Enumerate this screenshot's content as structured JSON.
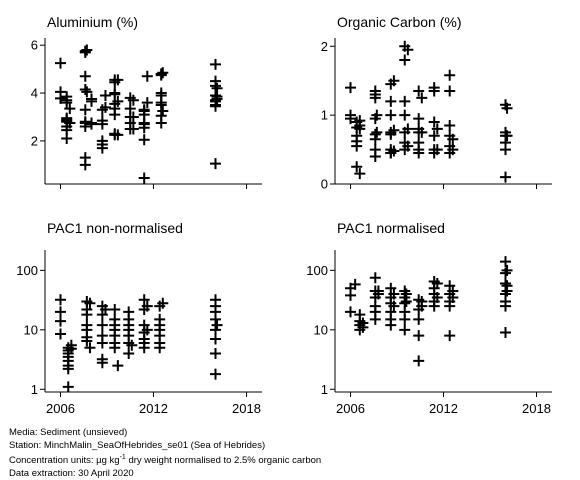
{
  "caption": {
    "media": "Media: Sediment (unsieved)",
    "station": "Station: MinchMalin_SeaOfHebrides_se01 (Sea of Hebrides)",
    "units_prefix": "Concentration units:  µg kg",
    "units_exp": "-1",
    "units_suffix": " dry weight normalised to 2.5% organic carbon",
    "extraction": "Data extraction: 30 April 2020"
  },
  "chart_data": [
    {
      "type": "scatter",
      "title": "Aluminium (%)",
      "marker": "plus",
      "xlim": [
        2005,
        2019
      ],
      "xticks": [
        2006,
        2012,
        2018
      ],
      "show_xtick_labels": false,
      "yscale": "linear",
      "ylim": [
        0.2,
        6.3
      ],
      "yticks": [
        {
          "value": 2,
          "label": "2"
        },
        {
          "value": 4,
          "label": "4"
        },
        {
          "value": 6,
          "label": "6"
        }
      ],
      "x": [
        2006,
        2006,
        2006,
        2006.4,
        2006.4,
        2006.4,
        2006.4,
        2006.4,
        2006.4,
        2006.4,
        2006.4,
        2006.4,
        2006.4,
        2006.6,
        2006.6,
        2006.6,
        2007.6,
        2007.6,
        2007.6,
        2007.6,
        2007.6,
        2007.6,
        2007.6,
        2007.6,
        2007.6,
        2007.6,
        2007.7,
        2007.7,
        2008,
        2008,
        2008,
        2008,
        2008.7,
        2008.7,
        2008.7,
        2008.7,
        2008.7,
        2008.7,
        2008.9,
        2008.9,
        2009.5,
        2009.5,
        2009.5,
        2009.5,
        2009.5,
        2009.5,
        2009.5,
        2009.5,
        2009.5,
        2009.7,
        2009.7,
        2009.7,
        2010.5,
        2010.5,
        2010.5,
        2010.5,
        2010.5,
        2010.7,
        2010.7,
        2010.7,
        2011.4,
        2011.4,
        2011.4,
        2011.4,
        2011.4,
        2011.4,
        2011.4,
        2011.4,
        2011.6,
        2011.6,
        2012.5,
        2012.5,
        2012.5,
        2012.5,
        2012.5,
        2012.5,
        2012.5,
        2012.5,
        2012.6,
        2012.6,
        2016,
        2016,
        2016,
        2016,
        2016,
        2016,
        2016,
        2016,
        2016,
        2016.1,
        2016.1,
        2016.1
      ],
      "y": [
        5.25,
        4.05,
        3.78,
        2.95,
        2.85,
        2.8,
        2.6,
        2.45,
        2.9,
        3.85,
        3.7,
        3.6,
        2.1,
        3.35,
        2.75,
        2.75,
        5.75,
        5.7,
        4.7,
        3.3,
        2.8,
        2.75,
        2.6,
        1.3,
        1.0,
        4.15,
        5.8,
        4.05,
        3.75,
        2.75,
        2.7,
        3.65,
        3.3,
        2.85,
        2.7,
        2.0,
        1.85,
        1.7,
        3.9,
        3.4,
        4.55,
        4.45,
        4.0,
        3.95,
        3.55,
        3.35,
        3.1,
        2.3,
        2.25,
        4.55,
        3.65,
        2.25,
        3.8,
        3.35,
        3.0,
        2.75,
        2.5,
        3.7,
        3.0,
        2.5,
        3.3,
        3.25,
        3.1,
        2.75,
        2.7,
        2.55,
        2.05,
        0.45,
        4.7,
        3.6,
        4.8,
        4.75,
        4.0,
        3.9,
        3.6,
        3.5,
        3.05,
        2.75,
        4.85,
        3.25,
        5.2,
        4.5,
        4.3,
        3.9,
        3.7,
        3.65,
        3.5,
        3.45,
        1.05,
        4.2,
        3.85,
        3.75
      ]
    },
    {
      "type": "scatter",
      "title": "Organic Carbon (%)",
      "marker": "plus",
      "xlim": [
        2005,
        2019
      ],
      "xticks": [
        2006,
        2012,
        2018
      ],
      "show_xtick_labels": false,
      "yscale": "linear",
      "ylim": [
        0,
        2.12
      ],
      "yticks": [
        {
          "value": 0,
          "label": "0"
        },
        {
          "value": 1,
          "label": "1"
        },
        {
          "value": 2,
          "label": "2"
        }
      ],
      "x": [
        2006,
        2006,
        2006,
        2006.4,
        2006.4,
        2006.4,
        2006.4,
        2006.4,
        2006.4,
        2006.6,
        2006.6,
        2006.6,
        2006.6,
        2007.6,
        2007.6,
        2007.6,
        2007.6,
        2007.6,
        2007.6,
        2007.6,
        2007.6,
        2007.7,
        2007.7,
        2008.6,
        2008.6,
        2008.6,
        2008.6,
        2008.6,
        2008.6,
        2008.6,
        2008.6,
        2008.8,
        2008.8,
        2008.8,
        2009.5,
        2009.5,
        2009.5,
        2009.5,
        2009.5,
        2009.5,
        2009.5,
        2009.7,
        2009.7,
        2009.7,
        2010.4,
        2010.4,
        2010.4,
        2010.4,
        2010.4,
        2010.4,
        2010.4,
        2010.6,
        2010.6,
        2011.4,
        2011.4,
        2011.4,
        2011.4,
        2011.4,
        2011.4,
        2011.6,
        2011.6,
        2012.4,
        2012.4,
        2012.4,
        2012.4,
        2012.4,
        2012.4,
        2012.6,
        2012.6,
        2016,
        2016,
        2016,
        2016,
        2016,
        2016,
        2016.1,
        2016.1
      ],
      "y": [
        1.4,
        1.0,
        0.95,
        0.9,
        0.82,
        0.7,
        0.62,
        0.55,
        0.25,
        0.85,
        0.8,
        0.15,
        0.92,
        1.3,
        1.25,
        0.95,
        0.72,
        0.65,
        0.5,
        0.4,
        1.35,
        1.0,
        0.75,
        1.45,
        1.0,
        0.75,
        0.72,
        0.5,
        0.45,
        0.45,
        1.2,
        1.5,
        0.78,
        0.48,
        2.0,
        1.8,
        1.2,
        1.0,
        0.75,
        0.6,
        0.5,
        1.95,
        0.8,
        0.55,
        1.35,
        0.95,
        0.8,
        0.75,
        0.6,
        0.5,
        0.45,
        1.25,
        0.75,
        1.4,
        0.9,
        0.7,
        0.5,
        0.45,
        1.35,
        0.8,
        0.5,
        1.58,
        0.85,
        0.7,
        0.55,
        0.45,
        1.35,
        0.65,
        0.5,
        1.15,
        0.75,
        0.7,
        0.6,
        0.5,
        0.1,
        1.1,
        0.7
      ]
    },
    {
      "type": "scatter",
      "title": "PAC1 non-normalised",
      "marker": "plus",
      "xlim": [
        2005,
        2019
      ],
      "xticks": [
        2006,
        2012,
        2018
      ],
      "show_xtick_labels": true,
      "yscale": "log",
      "ylim": [
        0.9,
        220
      ],
      "yticks": [
        {
          "value": 1,
          "label": "1"
        },
        {
          "value": 10,
          "label": "10"
        },
        {
          "value": 100,
          "label": "100"
        }
      ],
      "x": [
        2006,
        2006,
        2006,
        2006,
        2006.5,
        2006.5,
        2006.5,
        2006.5,
        2006.5,
        2006.5,
        2006.5,
        2006.5,
        2006.7,
        2006.7,
        2007.7,
        2007.7,
        2007.7,
        2007.7,
        2007.7,
        2007.7,
        2007.7,
        2007.9,
        2007.9,
        2008.7,
        2008.7,
        2008.7,
        2008.7,
        2008.7,
        2008.7,
        2008.7,
        2008.9,
        2009.5,
        2009.5,
        2009.5,
        2009.5,
        2009.5,
        2009.5,
        2009.5,
        2009.7,
        2010.4,
        2010.4,
        2010.4,
        2010.4,
        2010.4,
        2010.4,
        2010.4,
        2010.6,
        2011.4,
        2011.4,
        2011.4,
        2011.4,
        2011.4,
        2011.4,
        2011.4,
        2011.6,
        2011.6,
        2012.4,
        2012.4,
        2012.4,
        2012.4,
        2012.4,
        2012.4,
        2012.4,
        2012.6,
        2016,
        2016,
        2016,
        2016,
        2016,
        2016,
        2016,
        2016,
        2016.1
      ],
      "y": [
        32,
        20,
        14,
        8.5,
        5.0,
        4.5,
        4.0,
        3.5,
        3.0,
        2.5,
        2.2,
        1.1,
        5.5,
        4.8,
        30,
        22,
        18,
        12,
        10,
        7.5,
        6.5,
        28,
        5.0,
        25,
        18,
        12,
        8,
        6,
        3.2,
        2.8,
        22,
        22,
        15,
        12,
        10,
        8,
        6,
        5,
        2.5,
        20,
        15,
        12,
        10,
        8,
        6,
        4,
        5.5,
        32,
        22,
        12,
        9,
        7,
        6,
        5,
        10,
        25,
        25,
        15,
        12,
        10,
        8,
        6,
        5,
        28,
        32,
        25,
        20,
        15,
        10,
        7,
        4,
        1.8,
        12
      ],
      "annotations": []
    },
    {
      "type": "scatter",
      "title": "PAC1 normalised",
      "marker": "plus",
      "xlim": [
        2005,
        2019
      ],
      "xticks": [
        2006,
        2012,
        2018
      ],
      "show_xtick_labels": true,
      "yscale": "log",
      "ylim": [
        0.9,
        220
      ],
      "yticks": [
        {
          "value": 1,
          "label": "1"
        },
        {
          "value": 10,
          "label": "10"
        },
        {
          "value": 100,
          "label": "100"
        }
      ],
      "x": [
        2006,
        2006,
        2006,
        2006.3,
        2006.6,
        2006.6,
        2006.6,
        2006.6,
        2006.8,
        2006.8,
        2007.6,
        2007.6,
        2007.6,
        2007.6,
        2007.6,
        2007.6,
        2007.8,
        2007.8,
        2008.6,
        2008.6,
        2008.6,
        2008.6,
        2008.6,
        2008.6,
        2008.8,
        2008.8,
        2009.5,
        2009.5,
        2009.5,
        2009.5,
        2009.5,
        2009.5,
        2009.6,
        2009.6,
        2010.4,
        2010.4,
        2010.4,
        2010.4,
        2010.4,
        2010.6,
        2010.6,
        2011.4,
        2011.4,
        2011.4,
        2011.4,
        2011.4,
        2011.6,
        2011.6,
        2012.4,
        2012.4,
        2012.4,
        2012.4,
        2012.4,
        2012.6,
        2012.6,
        2016,
        2016,
        2016,
        2016,
        2016,
        2016,
        2016,
        2016.1,
        2016.1,
        2016.1
      ],
      "y": [
        50,
        38,
        20,
        58,
        18,
        14,
        12,
        10,
        13,
        11,
        75,
        45,
        35,
        25,
        20,
        15,
        40,
        45,
        50,
        35,
        28,
        20,
        15,
        12,
        40,
        25,
        45,
        35,
        28,
        20,
        15,
        10,
        40,
        30,
        32,
        22,
        15,
        8,
        3,
        30,
        25,
        65,
        50,
        40,
        30,
        25,
        35,
        60,
        55,
        40,
        30,
        25,
        8,
        45,
        35,
        140,
        90,
        60,
        40,
        30,
        25,
        9,
        100,
        55,
        45
      ]
    }
  ]
}
